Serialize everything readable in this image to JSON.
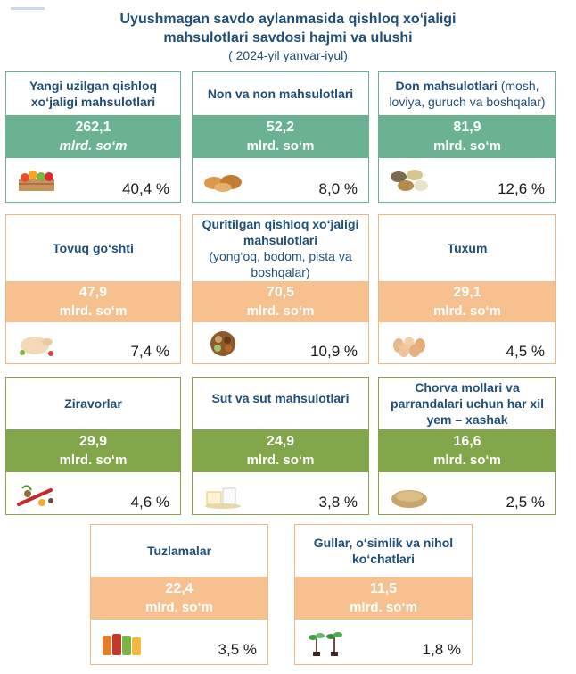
{
  "title_line1": "Uyushmagan savdo aylanmasida qishloq xo‘jaligi",
  "title_line2": "mahsulotlari savdosi hajmi va ulushi",
  "period": "( 2024-yil yanvar-iyul)",
  "colors": {
    "green": "#6bb293",
    "orange": "#f6c08f",
    "olive": "#82a64a",
    "title": "#1f4e79"
  },
  "cards": [
    {
      "title": "Yangi uzilgan qishloq xo‘jaligi mahsulotlari",
      "value": "262,1",
      "unit": "mlrd. so‘m",
      "share": "40,4 %",
      "icon": "fruit-crate-icon"
    },
    {
      "title": "Non va non mahsulotlari",
      "value": "52,2",
      "unit": "mlrd. so‘m",
      "share": "8,0 %",
      "icon": "bread-icon"
    },
    {
      "title": "Don mahsulotlari",
      "title_note": "(mosh, loviya, guruch va boshqalar)",
      "value": "81,9",
      "unit": "mlrd. so‘m",
      "share": "12,6 %",
      "icon": "grain-bowls-icon"
    },
    {
      "title": "Tovuq go‘shti",
      "value": "47,9",
      "unit": "mlrd. so‘m",
      "share": "7,4 %",
      "icon": "chicken-icon"
    },
    {
      "title": "Quritilgan qishloq xo‘jaligi mahsulotlari",
      "title_note": "(yong‘oq, bodom, pista va boshqalar)",
      "value": "70,5",
      "unit": "mlrd. so‘m",
      "share": "10,9 %",
      "icon": "dried-fruits-icon"
    },
    {
      "title": "Tuxum",
      "value": "29,1",
      "unit": "mlrd. so‘m",
      "share": "4,5 %",
      "icon": "eggs-icon"
    },
    {
      "title": "Ziravorlar",
      "value": "29,9",
      "unit": "mlrd. so‘m",
      "share": "4,6 %",
      "icon": "spices-icon"
    },
    {
      "title": "Sut va sut mahsulotlari",
      "value": "24,9",
      "unit": "mlrd. so‘m",
      "share": "3,8 %",
      "icon": "dairy-icon"
    },
    {
      "title": "Chorva mollari va parrandalari uchun har xil yem – xashak",
      "value": "16,6",
      "unit": "mlrd. so‘m",
      "share": "2,5 %",
      "icon": "feed-icon"
    },
    {
      "title": "Tuzlamalar",
      "value": "22,4",
      "unit": "mlrd. so‘m",
      "share": "3,5 %",
      "icon": "pickle-jars-icon"
    },
    {
      "title": "Gullar, o‘simlik va nihol ko‘chatlari",
      "value": "11,5",
      "unit": "mlrd. so‘m",
      "share": "1,8 %",
      "icon": "seedlings-icon"
    }
  ]
}
